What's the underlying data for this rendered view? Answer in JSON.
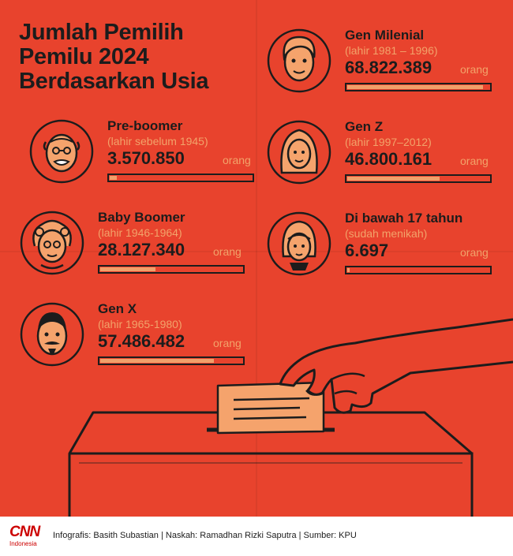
{
  "title_lines": [
    "Jumlah Pemilih",
    "Pemilu 2024",
    "Berdasarkan Usia"
  ],
  "chart_data": {
    "type": "bar",
    "title": "Jumlah Pemilih Pemilu 2024 Berdasarkan Usia",
    "unit": "orang",
    "groups": [
      {
        "name": "Pre-boomer",
        "sublabel": "(lahir sebelum 1945)",
        "value_label": "3.570.850",
        "value": 3570850
      },
      {
        "name": "Baby Boomer",
        "sublabel": "(lahir 1946-1964)",
        "value_label": "28.127.340",
        "value": 28127340
      },
      {
        "name": "Gen X",
        "sublabel": "(lahir 1965-1980)",
        "value_label": "57.486.482",
        "value": 57486482
      },
      {
        "name": "Gen Milenial",
        "sublabel": "(lahir 1981 – 1996)",
        "value_label": "68.822.389",
        "value": 68822389
      },
      {
        "name": "Gen Z",
        "sublabel": "(lahir 1997–2012)",
        "value_label": "46.800.161",
        "value": 46800161
      },
      {
        "name": "Di bawah 17 tahun",
        "sublabel": "(sudah menikah)",
        "value_label": "6.697",
        "value": 6697
      }
    ],
    "bar_max": 72000000
  },
  "footer": {
    "logo_main": "CNN",
    "logo_sub": "Indonesia",
    "credits": "Infografis: Basith Subastian | Naskah: Ramadhan Rizki Saputra | Sumber: KPU"
  },
  "colors": {
    "background": "#e8432d",
    "ink": "#1c1c1c",
    "accent": "#f0a06a",
    "ballot": "#f5a36c"
  },
  "icons": [
    "elderly-man-face-icon",
    "grandmother-face-icon",
    "mustache-man-face-icon",
    "young-man-face-icon",
    "long-hair-woman-face-icon",
    "girl-face-icon",
    "hand-ballot-box-icon"
  ]
}
